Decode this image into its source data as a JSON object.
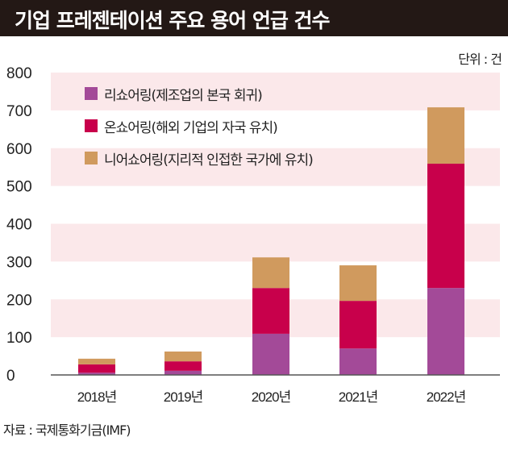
{
  "title": "기업 프레젠테이션 주요 용어 언급 건수",
  "unit": "단위 : 건",
  "source": "자료 : 국제통화기금(IMF)",
  "chart_data": {
    "type": "bar",
    "stacked": true,
    "categories": [
      "2018년",
      "2019년",
      "2020년",
      "2021년",
      "2022년"
    ],
    "series": [
      {
        "name": "리쇼어링(제조업의 본국 회귀)",
        "color": "#a34a98",
        "values": [
          6,
          11,
          109,
          70,
          230
        ]
      },
      {
        "name": "온쇼어링(해외 기업의 자국 유치)",
        "color": "#c8004b",
        "values": [
          22,
          25,
          121,
          126,
          329
        ]
      },
      {
        "name": "니어쇼어링(지리적 인접한 국가에 유치)",
        "color": "#d09a5e",
        "values": [
          15,
          26,
          81,
          94,
          149
        ]
      }
    ],
    "ylim": [
      0,
      800
    ],
    "yticks": [
      "0",
      "100",
      "200",
      "300",
      "400",
      "500",
      "600",
      "700",
      "800"
    ],
    "grid": "alternating pink bands",
    "band_color": "#fbe8ea",
    "legend": "top-left"
  }
}
